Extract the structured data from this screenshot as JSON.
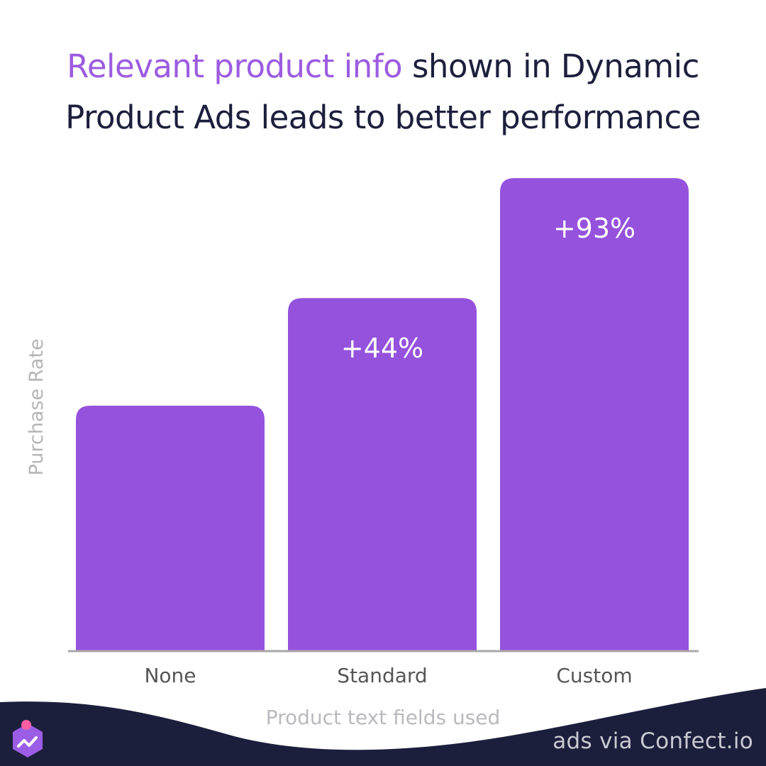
{
  "title": {
    "highlight": "Relevant product info",
    "line1_rest": " shown in Dynamic",
    "line2": "Product Ads leads to better performance"
  },
  "footer": {
    "credit": "ads via Confect.io",
    "logo_icon": "confect-logo-icon"
  },
  "colors": {
    "bar": "#9552dc",
    "title": "#1c1f3c",
    "highlight": "#9c5ce0",
    "axis_label": "#b5b5b5",
    "tick_label": "#555555",
    "footer_bg": "#1c1f3c"
  },
  "chart_data": {
    "type": "bar",
    "xlabel": "Product text fields used",
    "ylabel": "Purchase Rate",
    "categories": [
      "None",
      "Standard",
      "Custom"
    ],
    "values": [
      1.0,
      1.44,
      1.93
    ],
    "data_labels": [
      "",
      "+44%",
      "+93%"
    ],
    "ylim": [
      0,
      2.0
    ],
    "grid": false,
    "legend": "none"
  }
}
